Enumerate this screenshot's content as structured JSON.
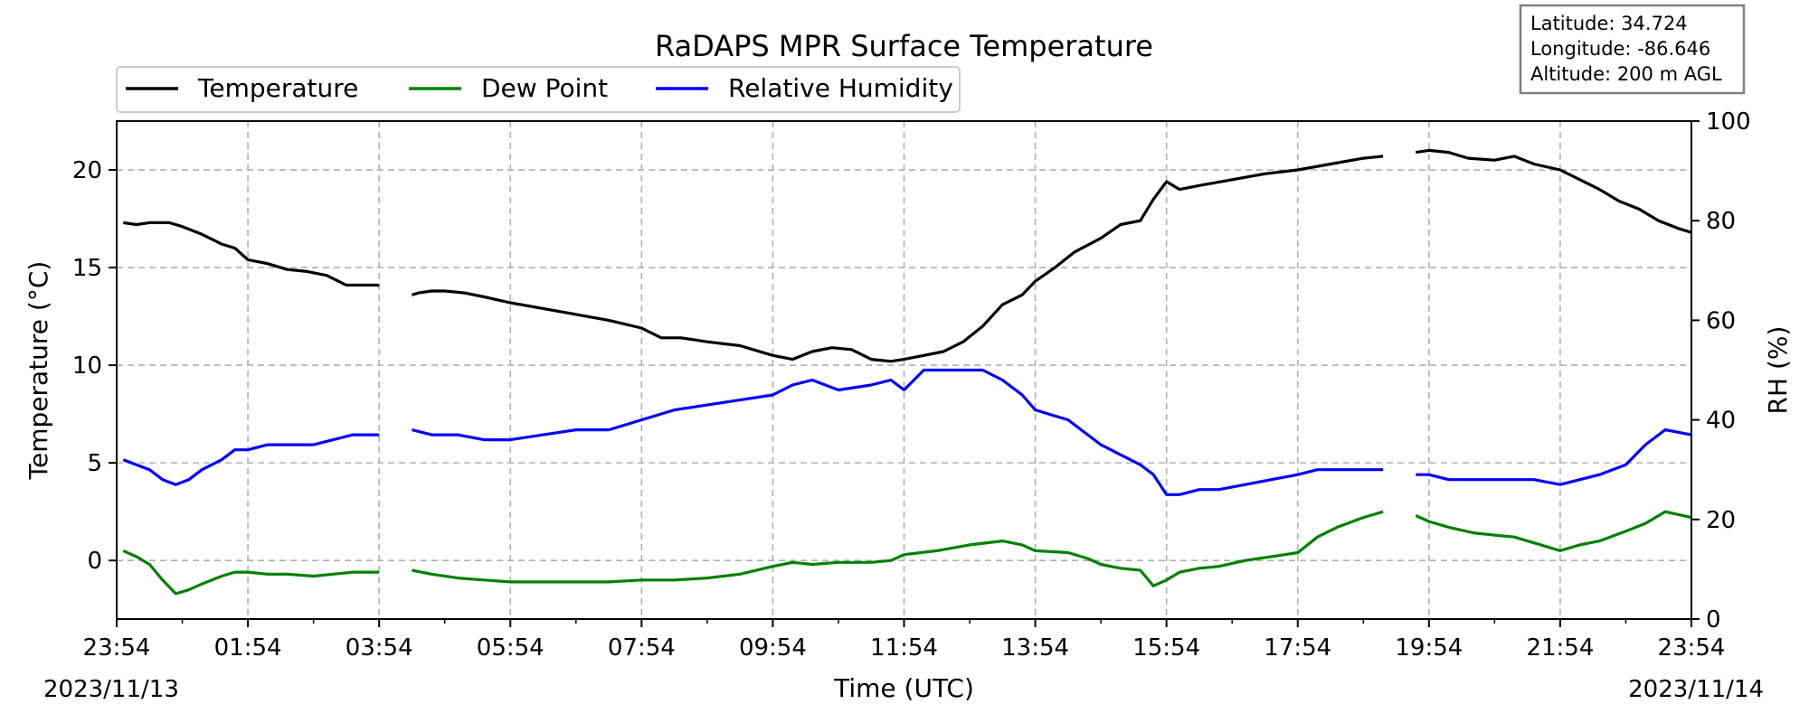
{
  "chart_data": {
    "type": "line",
    "title": "RaDAPS MPR Surface Temperature",
    "xlabel": "Time (UTC)",
    "ylabel_left": "Temperature ($^\\circ$C)",
    "ylabel_right": "RH (%)",
    "x_ticks": [
      "23:54",
      "01:54",
      "03:54",
      "05:54",
      "07:54",
      "09:54",
      "11:54",
      "13:54",
      "15:54",
      "17:54",
      "19:54",
      "21:54",
      "23:54"
    ],
    "x_tick_hours": [
      0,
      2,
      4,
      6,
      8,
      10,
      12,
      14,
      16,
      18,
      20,
      22,
      24
    ],
    "x_start_date": "2023/11/13",
    "x_end_date": "2023/11/14",
    "xlim_hours": [
      0,
      24
    ],
    "ylim_left": [
      -3,
      22.5
    ],
    "y_ticks_left": [
      0,
      5,
      10,
      15,
      20
    ],
    "ylim_right": [
      0,
      100
    ],
    "y_ticks_right": [
      0,
      20,
      40,
      60,
      80,
      100
    ],
    "grid": true,
    "legend_placement": "top-left",
    "info_box": {
      "lines": [
        "Latitude: 34.724",
        "Longitude: -86.646",
        "Altitude: 200 m AGL"
      ]
    },
    "gaps_hours": [
      [
        4.0,
        4.5
      ],
      [
        19.3,
        19.8
      ]
    ],
    "series": [
      {
        "name": "Temperature",
        "axis": "left",
        "color": "#000000",
        "x": [
          0.1,
          0.3,
          0.5,
          0.8,
          1.0,
          1.3,
          1.6,
          1.8,
          2.0,
          2.3,
          2.6,
          2.9,
          3.2,
          3.5,
          4.0,
          4.5,
          4.6,
          4.8,
          5.0,
          5.3,
          5.6,
          6.0,
          6.5,
          7.0,
          7.5,
          8.0,
          8.3,
          8.6,
          9.0,
          9.5,
          10.0,
          10.3,
          10.6,
          10.9,
          11.2,
          11.5,
          11.8,
          12.0,
          12.3,
          12.6,
          12.9,
          13.2,
          13.5,
          13.8,
          14.0,
          14.3,
          14.6,
          15.0,
          15.3,
          15.6,
          15.8,
          16.0,
          16.2,
          16.5,
          17.0,
          17.5,
          18.0,
          18.5,
          19.0,
          19.3,
          19.8,
          20.0,
          20.3,
          20.6,
          21.0,
          21.3,
          21.6,
          22.0,
          22.3,
          22.6,
          22.9,
          23.2,
          23.5,
          23.8,
          24.0
        ],
        "values": [
          17.3,
          17.2,
          17.3,
          17.3,
          17.1,
          16.7,
          16.2,
          16.0,
          15.4,
          15.2,
          14.9,
          14.8,
          14.6,
          14.1,
          14.1,
          13.6,
          13.7,
          13.8,
          13.8,
          13.7,
          13.5,
          13.2,
          12.9,
          12.6,
          12.3,
          11.9,
          11.4,
          11.4,
          11.2,
          11.0,
          10.5,
          10.3,
          10.7,
          10.9,
          10.8,
          10.3,
          10.2,
          10.3,
          10.5,
          10.7,
          11.2,
          12.0,
          13.1,
          13.6,
          14.3,
          15.0,
          15.8,
          16.5,
          17.2,
          17.4,
          18.5,
          19.4,
          19.0,
          19.2,
          19.5,
          19.8,
          20.0,
          20.3,
          20.6,
          20.7,
          20.9,
          21.0,
          20.9,
          20.6,
          20.5,
          20.7,
          20.3,
          20.0,
          19.5,
          19.0,
          18.4,
          18.0,
          17.4,
          17.0,
          16.8
        ]
      },
      {
        "name": "Dew Point",
        "axis": "left",
        "color": "#008000",
        "x": [
          0.1,
          0.3,
          0.5,
          0.7,
          0.9,
          1.1,
          1.3,
          1.6,
          1.8,
          2.0,
          2.3,
          2.6,
          3.0,
          3.3,
          3.6,
          4.0,
          4.5,
          4.8,
          5.2,
          5.6,
          6.0,
          6.5,
          7.0,
          7.5,
          8.0,
          8.5,
          9.0,
          9.5,
          10.0,
          10.3,
          10.6,
          11.0,
          11.5,
          11.8,
          12.0,
          12.5,
          13.0,
          13.5,
          13.8,
          14.0,
          14.5,
          14.8,
          15.0,
          15.3,
          15.6,
          15.8,
          16.0,
          16.2,
          16.5,
          16.8,
          17.2,
          17.6,
          18.0,
          18.3,
          18.6,
          19.0,
          19.3,
          19.8,
          20.0,
          20.3,
          20.7,
          21.0,
          21.3,
          21.6,
          22.0,
          22.3,
          22.6,
          23.0,
          23.3,
          23.6,
          24.0
        ],
        "values": [
          0.5,
          0.2,
          -0.2,
          -1.0,
          -1.7,
          -1.5,
          -1.2,
          -0.8,
          -0.6,
          -0.6,
          -0.7,
          -0.7,
          -0.8,
          -0.7,
          -0.6,
          -0.6,
          -0.5,
          -0.7,
          -0.9,
          -1.0,
          -1.1,
          -1.1,
          -1.1,
          -1.1,
          -1.0,
          -1.0,
          -0.9,
          -0.7,
          -0.3,
          -0.1,
          -0.2,
          -0.1,
          -0.1,
          0.0,
          0.3,
          0.5,
          0.8,
          1.0,
          0.8,
          0.5,
          0.4,
          0.1,
          -0.2,
          -0.4,
          -0.5,
          -1.3,
          -1.0,
          -0.6,
          -0.4,
          -0.3,
          0.0,
          0.2,
          0.4,
          1.2,
          1.7,
          2.2,
          2.5,
          2.3,
          2.0,
          1.7,
          1.4,
          1.3,
          1.2,
          0.9,
          0.5,
          0.8,
          1.0,
          1.5,
          1.9,
          2.5,
          2.2
        ]
      },
      {
        "name": "Relative Humidity",
        "axis": "right",
        "color": "#0000ff",
        "x": [
          0.1,
          0.3,
          0.5,
          0.7,
          0.9,
          1.1,
          1.3,
          1.6,
          1.8,
          2.0,
          2.3,
          2.6,
          3.0,
          3.3,
          3.6,
          4.0,
          4.5,
          4.8,
          5.2,
          5.6,
          6.0,
          6.5,
          7.0,
          7.5,
          8.0,
          8.5,
          9.0,
          9.5,
          10.0,
          10.3,
          10.6,
          11.0,
          11.5,
          11.8,
          12.0,
          12.3,
          12.6,
          12.9,
          13.2,
          13.5,
          13.8,
          14.0,
          14.5,
          14.8,
          15.0,
          15.3,
          15.6,
          15.8,
          16.0,
          16.2,
          16.5,
          16.8,
          17.2,
          17.6,
          18.0,
          18.3,
          18.6,
          19.0,
          19.3,
          19.8,
          20.0,
          20.3,
          20.7,
          21.0,
          21.3,
          21.6,
          22.0,
          22.3,
          22.6,
          23.0,
          23.3,
          23.6,
          24.0
        ],
        "values": [
          32,
          31,
          30,
          28,
          27,
          28,
          30,
          32,
          34,
          34,
          35,
          35,
          35,
          36,
          37,
          37,
          38,
          37,
          37,
          36,
          36,
          37,
          38,
          38,
          40,
          42,
          43,
          44,
          45,
          47,
          48,
          46,
          47,
          48,
          46,
          50,
          50,
          50,
          50,
          48,
          45,
          42,
          40,
          37,
          35,
          33,
          31,
          29,
          25,
          25,
          26,
          26,
          27,
          28,
          29,
          30,
          30,
          30,
          30,
          29,
          29,
          28,
          28,
          28,
          28,
          28,
          27,
          28,
          29,
          31,
          35,
          38,
          37
        ]
      }
    ]
  }
}
